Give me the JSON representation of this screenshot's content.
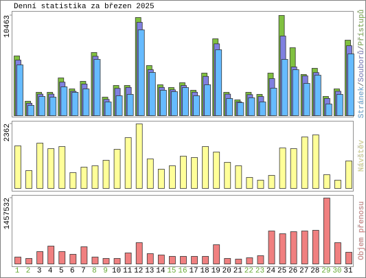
{
  "title": "Denní statistika za březen 2025",
  "chart_data": [
    {
      "type": "bar",
      "separator": "/",
      "ylim": [
        0,
        10463
      ],
      "yticks": [
        10463
      ],
      "series": [
        {
          "name": "Přístupů",
          "color": "#80c040",
          "values": [
            6235,
            1505,
            2437,
            2437,
            3941,
            2795,
            3583,
            6593,
            1935,
            3153,
            3153,
            10248,
            5231,
            3225,
            2938,
            3440,
            2652,
            4443,
            8026,
            2437,
            1648,
            2437,
            2222,
            4443,
            10463,
            7095,
            4300,
            4945,
            2007,
            2795,
            7883
          ]
        },
        {
          "name": "Souborů",
          "color": "#8080e0",
          "values": [
            5800,
            1300,
            2250,
            2250,
            3500,
            2550,
            3300,
            6200,
            1700,
            2850,
            2950,
            9746,
            4800,
            2950,
            2700,
            3150,
            2450,
            4100,
            7500,
            2250,
            1450,
            2200,
            2000,
            3870,
            8313,
            5088,
            4157,
            4500,
            1800,
            2550,
            7300
          ]
        },
        {
          "name": "Stránek",
          "color": "#66bbff",
          "values": [
            5303,
            1075,
            2007,
            1935,
            3010,
            2437,
            2795,
            5877,
            1433,
            2078,
            2222,
            8958,
            4515,
            2652,
            2508,
            2938,
            2078,
            3225,
            6880,
            1792,
            1362,
            1863,
            1433,
            2867,
            5877,
            4802,
            3368,
            4228,
            1218,
            2222,
            6450
          ]
        }
      ]
    },
    {
      "type": "bar",
      "ylim": [
        0,
        2362
      ],
      "yticks": [
        2362
      ],
      "series": [
        {
          "name": "Návštěv",
          "color": "#ffff99",
          "values": [
            1558,
            653,
            1658,
            1457,
            1533,
            578,
            779,
            829,
            1030,
            1432,
            1859,
            2362,
            1080,
            704,
            829,
            1181,
            1131,
            1533,
            1332,
            955,
            829,
            402,
            302,
            477,
            1482,
            1457,
            1885,
            1960,
            503,
            302,
            1005
          ]
        }
      ]
    },
    {
      "type": "bar",
      "ylim": [
        0,
        1457532
      ],
      "yticks": [
        1457532
      ],
      "categories": [
        "1",
        "2",
        "3",
        "4",
        "5",
        "6",
        "7",
        "8",
        "9",
        "10",
        "11",
        "12",
        "13",
        "14",
        "15",
        "16",
        "17",
        "18",
        "19",
        "20",
        "21",
        "22",
        "23",
        "24",
        "25",
        "26",
        "27",
        "28",
        "29",
        "30",
        "31"
      ],
      "category_colors": [
        "#66aa33",
        "#66aa33",
        "#000000",
        "#000000",
        "#000000",
        "#000000",
        "#000000",
        "#66aa33",
        "#66aa33",
        "#000000",
        "#000000",
        "#000000",
        "#000000",
        "#000000",
        "#66aa33",
        "#66aa33",
        "#000000",
        "#000000",
        "#000000",
        "#000000",
        "#000000",
        "#66aa33",
        "#66aa33",
        "#000000",
        "#000000",
        "#000000",
        "#000000",
        "#000000",
        "#66aa33",
        "#66aa33",
        "#000000"
      ],
      "series": [
        {
          "name": "Objem přenosu",
          "color": "#f08080",
          "values": [
            151826,
            121461,
            273287,
            394748,
            273287,
            212557,
            379566,
            151826,
            121461,
            121461,
            242922,
            470661,
            227739,
            197374,
            167009,
            167009,
            167009,
            167009,
            425114,
            121461,
            106278,
            136644,
            182192,
            728766,
            668036,
            713583,
            728766,
            743959,
            1457532,
            470661,
            258105
          ]
        }
      ]
    }
  ]
}
